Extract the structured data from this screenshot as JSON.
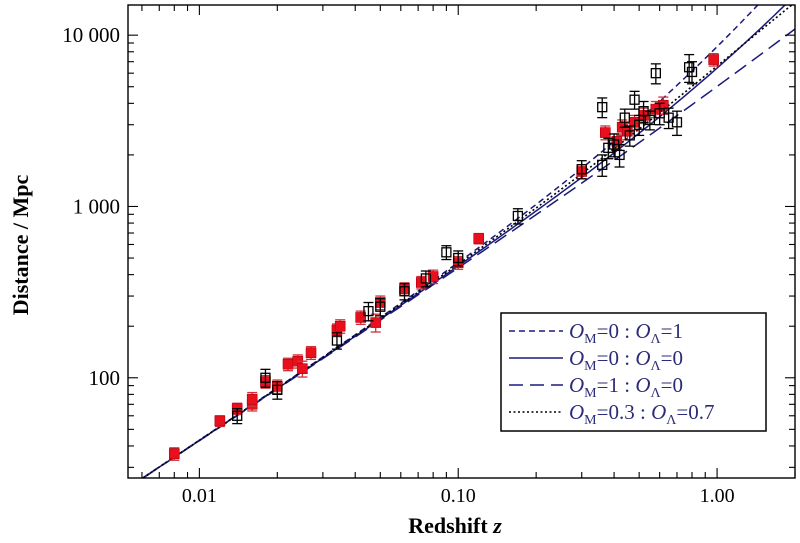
{
  "chart_data": {
    "type": "scatter",
    "title": "",
    "xlabel": "Redshift",
    "xlabel_var": "z",
    "ylabel": "Distance / Mpc",
    "xscale": "log",
    "yscale": "log",
    "xlim": [
      0.0053,
      2.0
    ],
    "ylim": [
      26,
      15000
    ],
    "x_ticks": [
      0.01,
      0.1,
      1.0
    ],
    "x_tick_labels": [
      "0.01",
      "0.10",
      "1.00"
    ],
    "y_ticks": [
      100,
      1000,
      10000
    ],
    "y_tick_labels": [
      "100",
      "1 000",
      "10 000"
    ],
    "grid": false,
    "legend_position": "bottom-right",
    "colors": {
      "low_z_marker": "#e8101c",
      "high_z_marker": "#000000",
      "model_lines": "#1a1a7e",
      "dotted_line": "#000000",
      "legend_text": "#2b2b7a"
    },
    "series": [
      {
        "marker": "filled-square",
        "color": "#e8101c",
        "points": [
          {
            "x": 0.008,
            "y": 36,
            "err": 3
          },
          {
            "x": 0.012,
            "y": 56,
            "err": 4
          },
          {
            "x": 0.014,
            "y": 66,
            "err": 5
          },
          {
            "x": 0.016,
            "y": 70,
            "err": 6
          },
          {
            "x": 0.016,
            "y": 75,
            "err": 7
          },
          {
            "x": 0.018,
            "y": 95,
            "err": 8
          },
          {
            "x": 0.02,
            "y": 89,
            "err": 8
          },
          {
            "x": 0.022,
            "y": 120,
            "err": 10
          },
          {
            "x": 0.024,
            "y": 125,
            "err": 11
          },
          {
            "x": 0.025,
            "y": 113,
            "err": 12
          },
          {
            "x": 0.027,
            "y": 140,
            "err": 12
          },
          {
            "x": 0.034,
            "y": 190,
            "err": 16
          },
          {
            "x": 0.035,
            "y": 200,
            "err": 18
          },
          {
            "x": 0.042,
            "y": 225,
            "err": 20
          },
          {
            "x": 0.048,
            "y": 210,
            "err": 25
          },
          {
            "x": 0.05,
            "y": 275,
            "err": 25
          },
          {
            "x": 0.062,
            "y": 330,
            "err": 28
          },
          {
            "x": 0.072,
            "y": 360,
            "err": 30
          },
          {
            "x": 0.08,
            "y": 390,
            "err": 35
          },
          {
            "x": 0.1,
            "y": 470,
            "err": 40
          },
          {
            "x": 0.12,
            "y": 650,
            "err": 45
          },
          {
            "x": 0.3,
            "y": 1600,
            "err": 150
          },
          {
            "x": 0.37,
            "y": 2700,
            "err": 250
          },
          {
            "x": 0.41,
            "y": 2400,
            "err": 250
          },
          {
            "x": 0.43,
            "y": 2900,
            "err": 300
          },
          {
            "x": 0.45,
            "y": 2750,
            "err": 300
          },
          {
            "x": 0.48,
            "y": 3100,
            "err": 300
          },
          {
            "x": 0.52,
            "y": 3400,
            "err": 350
          },
          {
            "x": 0.58,
            "y": 3700,
            "err": 400
          },
          {
            "x": 0.62,
            "y": 3900,
            "err": 450
          },
          {
            "x": 0.97,
            "y": 7200,
            "err": 600
          }
        ]
      },
      {
        "marker": "open-square",
        "color": "#000000",
        "points": [
          {
            "x": 0.014,
            "y": 60,
            "err": 6
          },
          {
            "x": 0.018,
            "y": 100,
            "err": 12
          },
          {
            "x": 0.02,
            "y": 85,
            "err": 10
          },
          {
            "x": 0.034,
            "y": 165,
            "err": 18
          },
          {
            "x": 0.045,
            "y": 245,
            "err": 30
          },
          {
            "x": 0.05,
            "y": 260,
            "err": 30
          },
          {
            "x": 0.062,
            "y": 320,
            "err": 35
          },
          {
            "x": 0.075,
            "y": 380,
            "err": 40
          },
          {
            "x": 0.09,
            "y": 540,
            "err": 50
          },
          {
            "x": 0.1,
            "y": 500,
            "err": 50
          },
          {
            "x": 0.17,
            "y": 880,
            "err": 90
          },
          {
            "x": 0.3,
            "y": 1650,
            "err": 200
          },
          {
            "x": 0.36,
            "y": 1750,
            "err": 250
          },
          {
            "x": 0.36,
            "y": 3800,
            "err": 500
          },
          {
            "x": 0.38,
            "y": 2200,
            "err": 300
          },
          {
            "x": 0.4,
            "y": 2300,
            "err": 350
          },
          {
            "x": 0.42,
            "y": 2000,
            "err": 300
          },
          {
            "x": 0.44,
            "y": 3300,
            "err": 400
          },
          {
            "x": 0.46,
            "y": 2600,
            "err": 350
          },
          {
            "x": 0.48,
            "y": 4200,
            "err": 500
          },
          {
            "x": 0.5,
            "y": 3000,
            "err": 400
          },
          {
            "x": 0.52,
            "y": 3600,
            "err": 500
          },
          {
            "x": 0.55,
            "y": 3200,
            "err": 400
          },
          {
            "x": 0.58,
            "y": 6000,
            "err": 800
          },
          {
            "x": 0.6,
            "y": 3500,
            "err": 500
          },
          {
            "x": 0.65,
            "y": 3300,
            "err": 450
          },
          {
            "x": 0.7,
            "y": 3100,
            "err": 500
          },
          {
            "x": 0.78,
            "y": 6500,
            "err": 1200
          },
          {
            "x": 0.8,
            "y": 6100,
            "err": 900
          }
        ]
      }
    ],
    "models": [
      {
        "label_parts": [
          "O",
          "M",
          "=0 : ",
          "O",
          "Λ",
          "=1"
        ],
        "style": "short-dash",
        "color": "#1a1a7e",
        "model": "lambda"
      },
      {
        "label_parts": [
          "O",
          "M",
          "=0 : ",
          "O",
          "Λ",
          "=0"
        ],
        "style": "solid",
        "color": "#1a1a7e",
        "model": "empty"
      },
      {
        "label_parts": [
          "O",
          "M",
          "=1 : ",
          "O",
          "Λ",
          "=0"
        ],
        "style": "long-dash",
        "color": "#1a1a7e",
        "model": "eds"
      },
      {
        "label_parts": [
          "O",
          "M",
          "=0.3 : ",
          "O",
          "Λ",
          "=0.7"
        ],
        "style": "dotted",
        "color": "#000000",
        "model": "lcdm"
      }
    ]
  }
}
